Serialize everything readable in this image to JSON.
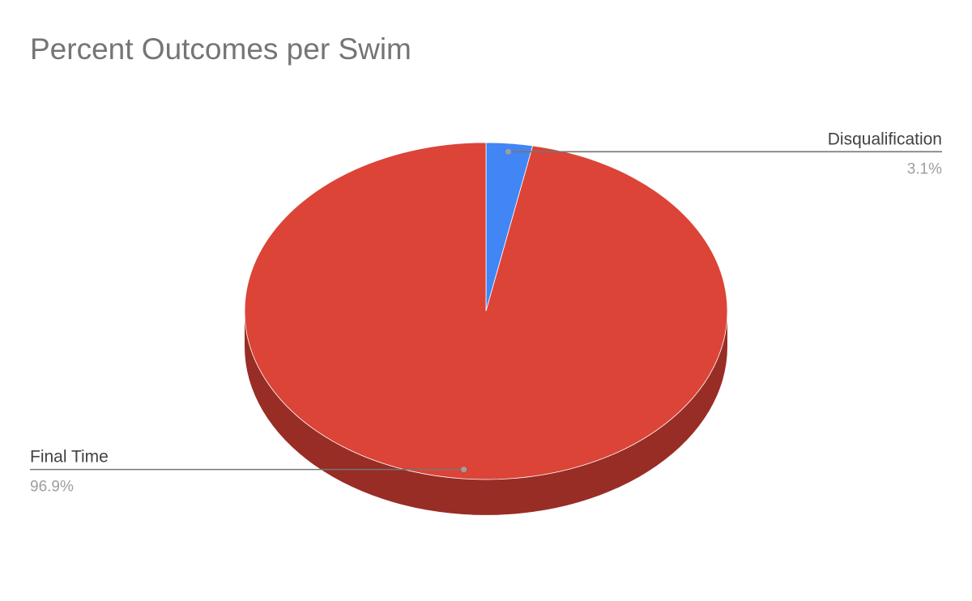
{
  "chart_data": {
    "type": "pie",
    "title": "Percent Outcomes per Swim",
    "three_d": true,
    "start_angle_deg": 0,
    "direction": "clockwise",
    "legend": "labeled",
    "slices": [
      {
        "label": "Disqualification",
        "value": 3.1,
        "value_label": "3.1%",
        "color": "#4285f4",
        "side_color": "#2a56a0",
        "label_side": "right"
      },
      {
        "label": "Final Time",
        "value": 96.9,
        "value_label": "96.9%",
        "color": "#db4437",
        "side_color": "#982d26",
        "label_side": "left"
      }
    ]
  }
}
